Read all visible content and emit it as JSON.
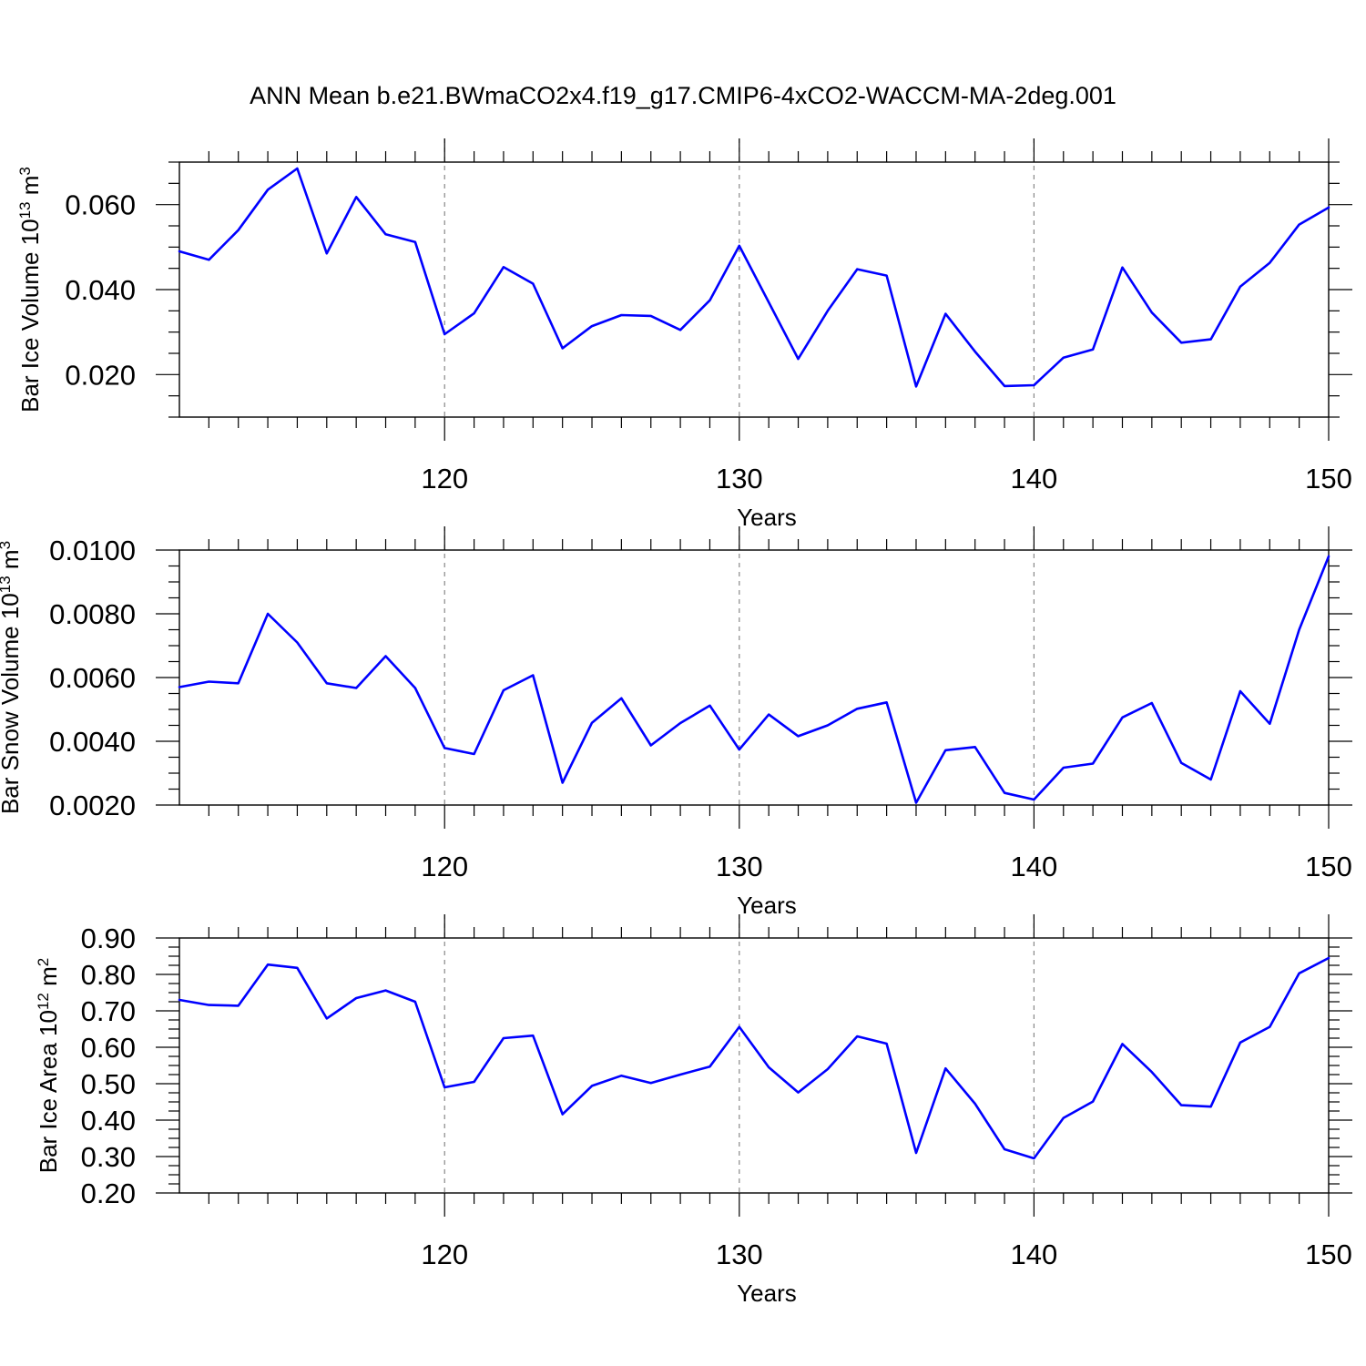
{
  "chart_data": [
    {
      "type": "line",
      "title": "ANN Mean b.e21.BWmaCO2x4.f19_g17.CMIP6-4xCO2-WACCM-MA-2deg.001",
      "ylabel": {
        "text": "Bar Ice Volume 10",
        "exp": "13",
        "unit": " m",
        "unit_exp": "3"
      },
      "xlabel": "Years",
      "x": [
        111,
        112,
        113,
        114,
        115,
        116,
        117,
        118,
        119,
        120,
        121,
        122,
        123,
        124,
        125,
        126,
        127,
        128,
        129,
        130,
        131,
        132,
        133,
        134,
        135,
        136,
        137,
        138,
        139,
        140,
        141,
        142,
        143,
        144,
        145,
        146,
        147,
        148,
        149,
        150
      ],
      "values": [
        0.049,
        0.047,
        0.054,
        0.0635,
        0.0685,
        0.0485,
        0.0618,
        0.053,
        0.0512,
        0.0295,
        0.0344,
        0.0453,
        0.0414,
        0.0262,
        0.0314,
        0.034,
        0.0338,
        0.0305,
        0.0375,
        0.0503,
        0.037,
        0.0237,
        0.035,
        0.0448,
        0.0433,
        0.0172,
        0.0343,
        0.0254,
        0.0173,
        0.0175,
        0.024,
        0.0259,
        0.0452,
        0.0346,
        0.0275,
        0.0283,
        0.0407,
        0.0463,
        0.0553,
        0.0593
      ],
      "xlim": [
        111,
        150
      ],
      "ylim": [
        0.01,
        0.07
      ],
      "yticks": [
        0.02,
        0.04,
        0.06
      ],
      "ytick_labels": [
        "0.020",
        "0.040",
        "0.060"
      ],
      "xticks": [
        120,
        130,
        140,
        150
      ],
      "xtick_labels": [
        "120",
        "130",
        "140",
        "150"
      ],
      "grid_x": [
        120,
        130,
        140
      ],
      "line_color": "#0000ff"
    },
    {
      "type": "line",
      "ylabel": {
        "text": "Bar Snow Volume 10",
        "exp": "13",
        "unit": " m",
        "unit_exp": "3"
      },
      "xlabel": "Years",
      "x": [
        111,
        112,
        113,
        114,
        115,
        116,
        117,
        118,
        119,
        120,
        121,
        122,
        123,
        124,
        125,
        126,
        127,
        128,
        129,
        130,
        131,
        132,
        133,
        134,
        135,
        136,
        137,
        138,
        139,
        140,
        141,
        142,
        143,
        144,
        145,
        146,
        147,
        148,
        149,
        150
      ],
      "values": [
        0.0057,
        0.00587,
        0.00582,
        0.008,
        0.0071,
        0.00582,
        0.00567,
        0.00667,
        0.00567,
        0.00379,
        0.0036,
        0.0056,
        0.00607,
        0.0027,
        0.00458,
        0.00535,
        0.00387,
        0.00457,
        0.00512,
        0.00374,
        0.00484,
        0.00416,
        0.0045,
        0.00502,
        0.00522,
        0.00207,
        0.00372,
        0.00382,
        0.00238,
        0.00217,
        0.00317,
        0.0033,
        0.00475,
        0.0052,
        0.00332,
        0.0028,
        0.00557,
        0.00455,
        0.0075,
        0.0098
      ],
      "xlim": [
        111,
        150
      ],
      "ylim": [
        0.002,
        0.01
      ],
      "yticks": [
        0.002,
        0.004,
        0.006,
        0.008,
        0.01
      ],
      "ytick_labels": [
        "0.0020",
        "0.0040",
        "0.0060",
        "0.0080",
        "0.0100"
      ],
      "xticks": [
        120,
        130,
        140,
        150
      ],
      "xtick_labels": [
        "120",
        "130",
        "140",
        "150"
      ],
      "grid_x": [
        120,
        130,
        140
      ],
      "line_color": "#0000ff"
    },
    {
      "type": "line",
      "ylabel": {
        "text": "Bar Ice Area 10",
        "exp": "12",
        "unit": " m",
        "unit_exp": "2"
      },
      "xlabel": "Years",
      "x": [
        111,
        112,
        113,
        114,
        115,
        116,
        117,
        118,
        119,
        120,
        121,
        122,
        123,
        124,
        125,
        126,
        127,
        128,
        129,
        130,
        131,
        132,
        133,
        134,
        135,
        136,
        137,
        138,
        139,
        140,
        141,
        142,
        143,
        144,
        145,
        146,
        147,
        148,
        149,
        150
      ],
      "values": [
        0.73,
        0.716,
        0.714,
        0.827,
        0.818,
        0.679,
        0.735,
        0.756,
        0.725,
        0.49,
        0.505,
        0.625,
        0.632,
        0.416,
        0.494,
        0.522,
        0.502,
        0.525,
        0.547,
        0.656,
        0.545,
        0.476,
        0.54,
        0.63,
        0.61,
        0.31,
        0.542,
        0.445,
        0.32,
        0.295,
        0.406,
        0.451,
        0.609,
        0.532,
        0.441,
        0.437,
        0.613,
        0.656,
        0.803,
        0.845
      ],
      "xlim": [
        111,
        150
      ],
      "ylim": [
        0.2,
        0.9
      ],
      "yticks": [
        0.2,
        0.3,
        0.4,
        0.5,
        0.6,
        0.7,
        0.8,
        0.9
      ],
      "ytick_labels": [
        "0.20",
        "0.30",
        "0.40",
        "0.50",
        "0.60",
        "0.70",
        "0.80",
        "0.90"
      ],
      "xticks": [
        120,
        130,
        140,
        150
      ],
      "xtick_labels": [
        "120",
        "130",
        "140",
        "150"
      ],
      "grid_x": [
        120,
        130,
        140
      ],
      "line_color": "#0000ff"
    }
  ]
}
